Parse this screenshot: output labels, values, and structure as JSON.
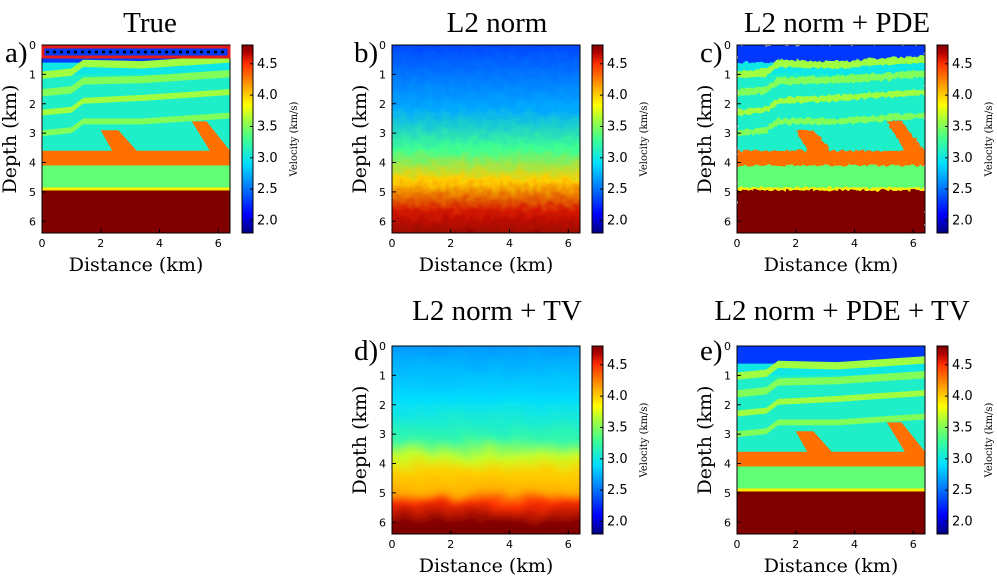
{
  "figure": {
    "colormap": [
      "#00007f",
      "#0000ff",
      "#0080ff",
      "#00e0ff",
      "#40ff90",
      "#a0ff40",
      "#ffff00",
      "#ff9000",
      "#ff3000",
      "#b00000",
      "#800000"
    ]
  },
  "panels": [
    {
      "id": "a",
      "label": "a)",
      "title": "True",
      "pattern": "true"
    },
    {
      "id": "b",
      "label": "b)",
      "title": "L2 norm",
      "pattern": "l2"
    },
    {
      "id": "c",
      "label": "c)",
      "title": "L2 norm + PDE",
      "pattern": "pde"
    },
    {
      "id": "d",
      "label": "d)",
      "title": "L2 norm + TV",
      "pattern": "tv"
    },
    {
      "id": "e",
      "label": "e)",
      "title": "L2 norm + PDE + TV",
      "pattern": "pdetv"
    }
  ],
  "chart_data": {
    "type": "heatmap",
    "xlabel": "Distance (km)",
    "ylabel": "Depth (km)",
    "xlim": [
      0,
      6.4
    ],
    "ylim": [
      6.4,
      0
    ],
    "xticks": [
      "0",
      "2",
      "4",
      "6"
    ],
    "yticks": [
      "0",
      "1",
      "2",
      "3",
      "4",
      "5",
      "6"
    ],
    "colorbar": {
      "label": "Velocity (km/s)",
      "range": [
        1.8,
        4.8
      ],
      "ticks": [
        "2.0",
        "2.5",
        "3.0",
        "3.5",
        "4.0",
        "4.5"
      ]
    },
    "model_layers": [
      {
        "top_km": 0.0,
        "bottom_km": 0.6,
        "velocity": 2.3
      },
      {
        "top_km": 0.6,
        "bottom_km": 1.0,
        "velocity": 3.0
      },
      {
        "top_km": 1.0,
        "bottom_km": 3.6,
        "velocity": 3.1
      },
      {
        "top_km": 3.6,
        "bottom_km": 4.1,
        "velocity": 4.3
      },
      {
        "top_km": 4.1,
        "bottom_km": 4.9,
        "velocity": 3.4
      },
      {
        "top_km": 4.9,
        "bottom_km": 6.4,
        "velocity": 4.8
      }
    ]
  }
}
